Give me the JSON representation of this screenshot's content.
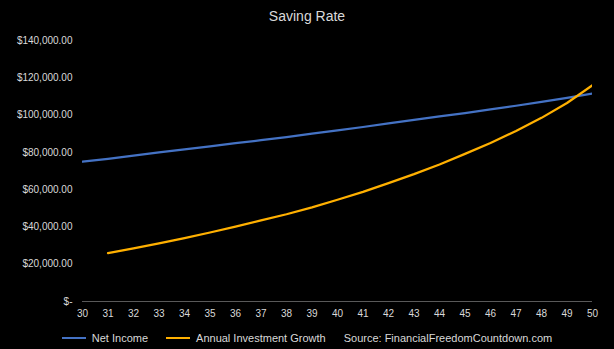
{
  "chart_data": {
    "type": "line",
    "title": "Saving Rate",
    "source": "Source: FinancialFreedomCountdown.com",
    "x": [
      30,
      31,
      32,
      33,
      34,
      35,
      36,
      37,
      38,
      39,
      40,
      41,
      42,
      43,
      44,
      45,
      46,
      47,
      48,
      49,
      50
    ],
    "series": [
      {
        "name": "Net Income",
        "color": "#4472c4",
        "values": [
          75000,
          76500,
          78200,
          80000,
          81600,
          83200,
          84900,
          86500,
          88200,
          90000,
          91800,
          93600,
          95500,
          97400,
          99300,
          101000,
          103000,
          105000,
          107100,
          109200,
          111500
        ]
      },
      {
        "name": "Annual Investment Growth",
        "color": "#ffb000",
        "values": [
          null,
          26000,
          28500,
          31200,
          34000,
          37000,
          40200,
          43500,
          46800,
          50500,
          54600,
          58800,
          63500,
          68300,
          73500,
          79200,
          85000,
          91500,
          98500,
          106500,
          116000
        ]
      }
    ],
    "xlim": [
      30,
      50
    ],
    "xticks": [
      30,
      31,
      32,
      33,
      34,
      35,
      36,
      37,
      38,
      39,
      40,
      41,
      42,
      43,
      44,
      45,
      46,
      47,
      48,
      49,
      50
    ],
    "ylim": [
      0,
      140000
    ],
    "yticks": [
      {
        "value": 0,
        "label": "$-"
      },
      {
        "value": 20000,
        "label": "$20,000.00"
      },
      {
        "value": 40000,
        "label": "$40,000.00"
      },
      {
        "value": 60000,
        "label": "$60,000.00"
      },
      {
        "value": 80000,
        "label": "$80,000.00"
      },
      {
        "value": 100000,
        "label": "$100,000.00"
      },
      {
        "value": 120000,
        "label": "$120,000.00"
      },
      {
        "value": 140000,
        "label": "$140,000.00"
      }
    ],
    "grid": false,
    "legend": "bottom"
  }
}
